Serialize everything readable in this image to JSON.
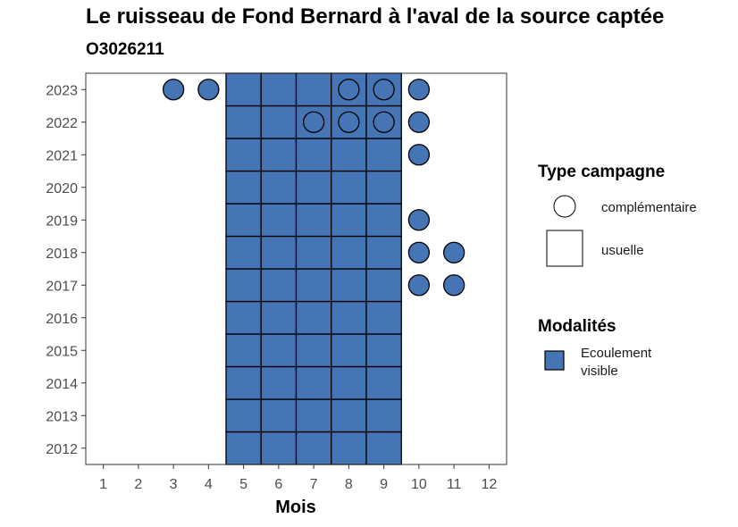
{
  "title": "Le ruisseau de Fond Bernard à l'aval de la source captée",
  "subtitle": "O3026211",
  "colors": {
    "fill": "#4575b4",
    "stroke": "#000000",
    "panel_border": "#333333",
    "tick_text": "#4d4d4d"
  },
  "chart_data": {
    "type": "heatmap",
    "xlabel": "Mois",
    "ylabel": "",
    "x_ticks": [
      "1",
      "2",
      "3",
      "4",
      "5",
      "6",
      "7",
      "8",
      "9",
      "10",
      "11",
      "12"
    ],
    "y_ticks": [
      "2012",
      "2013",
      "2014",
      "2015",
      "2016",
      "2017",
      "2018",
      "2019",
      "2020",
      "2021",
      "2022",
      "2023"
    ],
    "xlim": [
      0.5,
      12.5
    ],
    "ylim": [
      2011.5,
      2023.5
    ],
    "grid": false,
    "legend_position": "right",
    "usuelle": {
      "months": [
        5,
        6,
        7,
        8,
        9
      ],
      "years": [
        2012,
        2013,
        2014,
        2015,
        2016,
        2017,
        2018,
        2019,
        2020,
        2021,
        2022,
        2023
      ],
      "modalite": "Ecoulement visible"
    },
    "complementaire": [
      {
        "year": 2023,
        "month": 3,
        "filled": true
      },
      {
        "year": 2023,
        "month": 4,
        "filled": true
      },
      {
        "year": 2023,
        "month": 8,
        "filled": false
      },
      {
        "year": 2023,
        "month": 9,
        "filled": false
      },
      {
        "year": 2023,
        "month": 10,
        "filled": true
      },
      {
        "year": 2022,
        "month": 7,
        "filled": false
      },
      {
        "year": 2022,
        "month": 8,
        "filled": false
      },
      {
        "year": 2022,
        "month": 9,
        "filled": false
      },
      {
        "year": 2022,
        "month": 10,
        "filled": true
      },
      {
        "year": 2021,
        "month": 10,
        "filled": true
      },
      {
        "year": 2019,
        "month": 10,
        "filled": true
      },
      {
        "year": 2018,
        "month": 10,
        "filled": true
      },
      {
        "year": 2018,
        "month": 11,
        "filled": true
      },
      {
        "year": 2017,
        "month": 10,
        "filled": true
      },
      {
        "year": 2017,
        "month": 11,
        "filled": true
      }
    ],
    "legend": {
      "type_title": "Type campagne",
      "type_items": [
        {
          "shape": "circle",
          "label": "complémentaire"
        },
        {
          "shape": "square",
          "label": "usuelle"
        }
      ],
      "modalites_title": "Modalités",
      "modalites_items": [
        {
          "label_lines": [
            "Ecoulement",
            "visible"
          ],
          "color": "#4575b4"
        }
      ]
    }
  }
}
